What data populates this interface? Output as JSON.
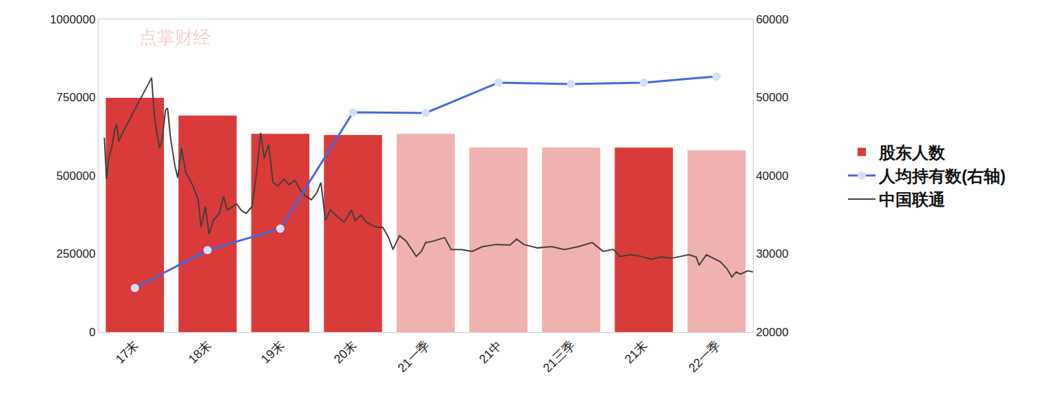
{
  "chart_data": {
    "type": "bar",
    "categories": [
      "17末",
      "18末",
      "19末",
      "20末",
      "21一季",
      "21中",
      "21三季",
      "21末",
      "22一季"
    ],
    "xlim": [
      -0.5,
      8.5
    ],
    "ylim": [
      0,
      1000000
    ],
    "yticks": [
      0,
      250000,
      500000,
      750000,
      1000000
    ],
    "y2lim": [
      20000,
      60000
    ],
    "y2ticks": [
      20000,
      30000,
      40000,
      50000,
      60000
    ],
    "grid": false,
    "legend": "right",
    "annotations": [
      {
        "text": "点掌财经"
      }
    ],
    "series": [
      {
        "name": "股东人数",
        "type": "bar",
        "colors": [
          "#d93a3a",
          "#d93a3a",
          "#d93a3a",
          "#d93a3a",
          "#f0b1b1",
          "#f0b1b1",
          "#f0b1b1",
          "#d93a3a",
          "#f0b1b1"
        ],
        "values": [
          749000,
          692000,
          634000,
          630000,
          634000,
          590000,
          590000,
          590000,
          581000
        ]
      },
      {
        "name": "人均持有数(右轴)",
        "type": "line",
        "axis": "y2",
        "color": "#4169e1",
        "marker": "circle",
        "values": [
          25640,
          30480,
          33220,
          48100,
          48020,
          51900,
          51720,
          51900,
          52690
        ]
      },
      {
        "name": "中国联通",
        "type": "line",
        "color": "#404040",
        "x": [
          -0.42,
          -0.39,
          -0.36,
          -0.32,
          -0.28,
          -0.25,
          -0.22,
          -0.18,
          0.23,
          0.27,
          0.3,
          0.34,
          0.38,
          0.42,
          0.45,
          0.49,
          0.55,
          0.59,
          0.64,
          0.7,
          0.8,
          0.87,
          0.91,
          0.97,
          1.02,
          1.08,
          1.16,
          1.22,
          1.27,
          1.35,
          1.4,
          1.46,
          1.53,
          1.61,
          1.67,
          1.73,
          1.78,
          1.84,
          1.9,
          1.97,
          2.05,
          2.12,
          2.2,
          2.27,
          2.35,
          2.43,
          2.5,
          2.56,
          2.62,
          2.69,
          2.79,
          2.88,
          2.98,
          3.03,
          3.11,
          3.18,
          3.26,
          3.34,
          3.41,
          3.49,
          3.55,
          3.64,
          3.73,
          3.81,
          3.87,
          3.94,
          4.0,
          4.11,
          4.26,
          4.35,
          4.49,
          4.64,
          4.78,
          4.97,
          5.16,
          5.25,
          5.35,
          5.54,
          5.73,
          5.91,
          6.1,
          6.29,
          6.44,
          6.58,
          6.67,
          6.82,
          6.96,
          7.1,
          7.24,
          7.38,
          7.53,
          7.62,
          7.72,
          7.76,
          7.86,
          7.95,
          8.05,
          8.14,
          8.21,
          8.27,
          8.33,
          8.43,
          8.5
        ],
        "values": [
          621000,
          489000,
          555000,
          588000,
          643000,
          665000,
          610000,
          632000,
          813000,
          687000,
          643000,
          588000,
          621000,
          709000,
          716000,
          621000,
          533000,
          493000,
          588000,
          511000,
          467000,
          423000,
          335000,
          401000,
          313000,
          357000,
          379000,
          434000,
          390000,
          401000,
          410000,
          390000,
          379000,
          401000,
          500000,
          637000,
          555000,
          599000,
          478000,
          467000,
          489000,
          471000,
          485000,
          456000,
          434000,
          423000,
          445000,
          478000,
          357000,
          390000,
          368000,
          352000,
          390000,
          357000,
          374000,
          352000,
          341000,
          335000,
          335000,
          302000,
          264000,
          308000,
          291000,
          264000,
          242000,
          258000,
          286000,
          291000,
          302000,
          264000,
          264000,
          258000,
          273000,
          280000,
          278000,
          297000,
          280000,
          269000,
          273000,
          264000,
          273000,
          286000,
          258000,
          264000,
          242000,
          247000,
          242000,
          233000,
          240000,
          236000,
          242000,
          247000,
          240000,
          214000,
          247000,
          236000,
          225000,
          203000,
          176000,
          192000,
          185000,
          196000,
          192000
        ]
      }
    ]
  }
}
